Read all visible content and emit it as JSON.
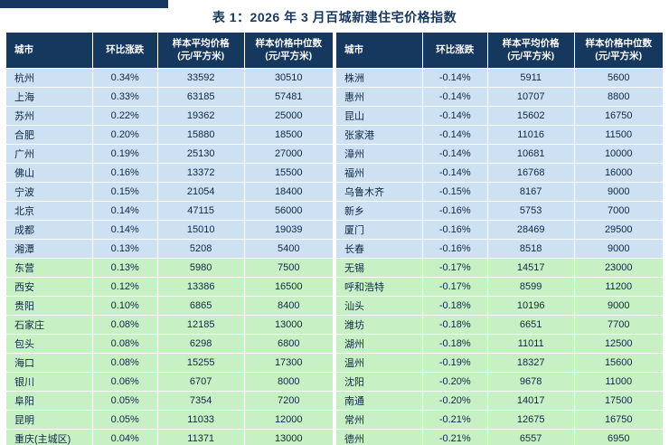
{
  "title": "表 1：2026 年 3 月百城新建住宅价格指数",
  "colors": {
    "header_bg": "#16375e",
    "blue_row": "#cde1f2",
    "green_row": "#c8f0c5",
    "title_color": "#16375e"
  },
  "blue_group_size": 10,
  "columns": [
    {
      "label": "城市",
      "sub": ""
    },
    {
      "label": "环比涨跌",
      "sub": ""
    },
    {
      "label": "样本平均价格",
      "sub": "(元/平方米)"
    },
    {
      "label": "样本价格中位数",
      "sub": "(元/平方米)"
    }
  ],
  "left_table": {
    "rows": [
      [
        "杭州",
        "0.34%",
        "33592",
        "30510"
      ],
      [
        "上海",
        "0.33%",
        "63185",
        "57481"
      ],
      [
        "苏州",
        "0.22%",
        "19362",
        "25000"
      ],
      [
        "合肥",
        "0.20%",
        "15880",
        "18500"
      ],
      [
        "广州",
        "0.19%",
        "25130",
        "27000"
      ],
      [
        "佛山",
        "0.16%",
        "13372",
        "15500"
      ],
      [
        "宁波",
        "0.15%",
        "21054",
        "18400"
      ],
      [
        "北京",
        "0.14%",
        "47115",
        "56000"
      ],
      [
        "成都",
        "0.14%",
        "15010",
        "19039"
      ],
      [
        "湘潭",
        "0.13%",
        "5208",
        "5400"
      ],
      [
        "东营",
        "0.13%",
        "5980",
        "7500"
      ],
      [
        "西安",
        "0.12%",
        "13386",
        "16500"
      ],
      [
        "贵阳",
        "0.10%",
        "6865",
        "8400"
      ],
      [
        "石家庄",
        "0.08%",
        "12185",
        "13000"
      ],
      [
        "包头",
        "0.08%",
        "6298",
        "6800"
      ],
      [
        "海口",
        "0.08%",
        "15255",
        "17300"
      ],
      [
        "银川",
        "0.06%",
        "6707",
        "8000"
      ],
      [
        "阜阳",
        "0.05%",
        "7354",
        "7200"
      ],
      [
        "昆明",
        "0.05%",
        "11033",
        "12000"
      ],
      [
        "重庆(主城区)",
        "0.04%",
        "11371",
        "13000"
      ]
    ]
  },
  "right_table": {
    "rows": [
      [
        "株洲",
        "-0.14%",
        "5911",
        "5600"
      ],
      [
        "惠州",
        "-0.14%",
        "10707",
        "8800"
      ],
      [
        "昆山",
        "-0.14%",
        "15602",
        "16750"
      ],
      [
        "张家港",
        "-0.14%",
        "11016",
        "11500"
      ],
      [
        "漳州",
        "-0.14%",
        "10681",
        "10000"
      ],
      [
        "福州",
        "-0.14%",
        "16768",
        "16000"
      ],
      [
        "乌鲁木齐",
        "-0.15%",
        "8167",
        "9000"
      ],
      [
        "新乡",
        "-0.16%",
        "5753",
        "7000"
      ],
      [
        "厦门",
        "-0.16%",
        "28469",
        "29500"
      ],
      [
        "长春",
        "-0.16%",
        "8518",
        "9000"
      ],
      [
        "无锡",
        "-0.17%",
        "14517",
        "23000"
      ],
      [
        "呼和浩特",
        "-0.17%",
        "8599",
        "11200"
      ],
      [
        "汕头",
        "-0.18%",
        "10196",
        "9000"
      ],
      [
        "潍坊",
        "-0.18%",
        "6651",
        "7700"
      ],
      [
        "湖州",
        "-0.18%",
        "11011",
        "12500"
      ],
      [
        "温州",
        "-0.19%",
        "18327",
        "15600"
      ],
      [
        "沈阳",
        "-0.20%",
        "9678",
        "11000"
      ],
      [
        "南通",
        "-0.20%",
        "14017",
        "17500"
      ],
      [
        "常州",
        "-0.21%",
        "12675",
        "16750"
      ],
      [
        "德州",
        "-0.21%",
        "6557",
        "6950"
      ]
    ]
  }
}
